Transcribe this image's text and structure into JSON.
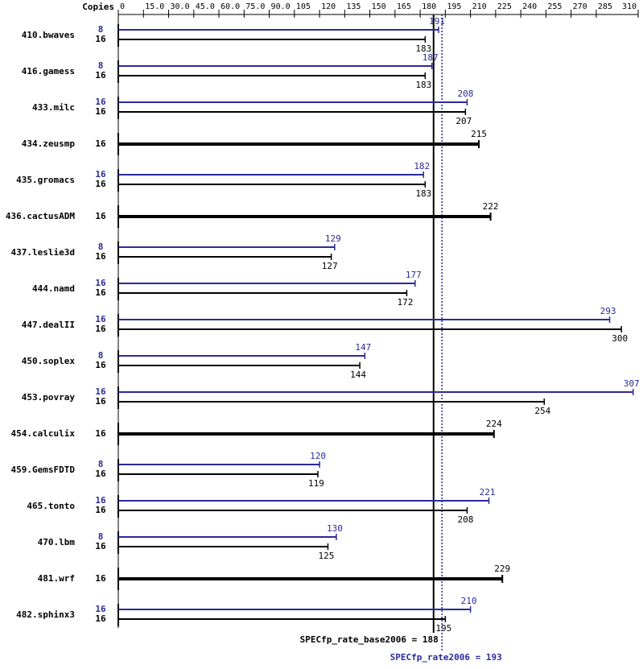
{
  "chart_data": {
    "type": "bar",
    "orientation": "horizontal",
    "copies_label": "Copies",
    "categories": [
      "410.bwaves",
      "416.gamess",
      "433.milc",
      "434.zeusmp",
      "435.gromacs",
      "436.cactusADM",
      "437.leslie3d",
      "444.namd",
      "447.dealII",
      "450.soplex",
      "453.povray",
      "454.calculix",
      "459.GemsFDTD",
      "465.tonto",
      "470.lbm",
      "481.wrf",
      "482.sphinx3"
    ],
    "series": [
      {
        "color": "#2a2a9a",
        "copies": [
          "8",
          "8",
          "16",
          null,
          "16",
          null,
          "8",
          "16",
          "16",
          "8",
          "16",
          null,
          "8",
          "16",
          "8",
          null,
          "16"
        ],
        "values": [
          191,
          187,
          208,
          null,
          182,
          null,
          129,
          177,
          293,
          147,
          307,
          null,
          120,
          221,
          130,
          null,
          210
        ]
      },
      {
        "color": "#000000",
        "copies": [
          "16",
          "16",
          "16",
          "16",
          "16",
          "16",
          "16",
          "16",
          "16",
          "16",
          "16",
          "16",
          "16",
          "16",
          "16",
          "16",
          "16"
        ],
        "values": [
          183,
          183,
          207,
          215,
          183,
          222,
          127,
          172,
          300,
          144,
          254,
          224,
          119,
          208,
          125,
          229,
          195
        ]
      }
    ],
    "xlim": [
      0,
      310
    ],
    "xticks": [
      0,
      {
        "value": 15,
        "label": "15.0"
      },
      {
        "value": 30,
        "label": "30.0"
      },
      {
        "value": 45,
        "label": "45.0"
      },
      {
        "value": 60,
        "label": "60.0"
      },
      {
        "value": 75,
        "label": "75.0"
      },
      {
        "value": 90,
        "label": "90.0"
      },
      105,
      120,
      135,
      150,
      165,
      180,
      195,
      210,
      225,
      240,
      255,
      270,
      285,
      310
    ],
    "reference_lines": [
      {
        "label": "SPECfp_rate_base2006 = 188",
        "value": 188,
        "color": "#000000",
        "dashed": false
      },
      {
        "label": "SPECfp_rate2006 = 193",
        "value": 193,
        "color": "#2a2a9a",
        "dashed": true
      }
    ]
  }
}
